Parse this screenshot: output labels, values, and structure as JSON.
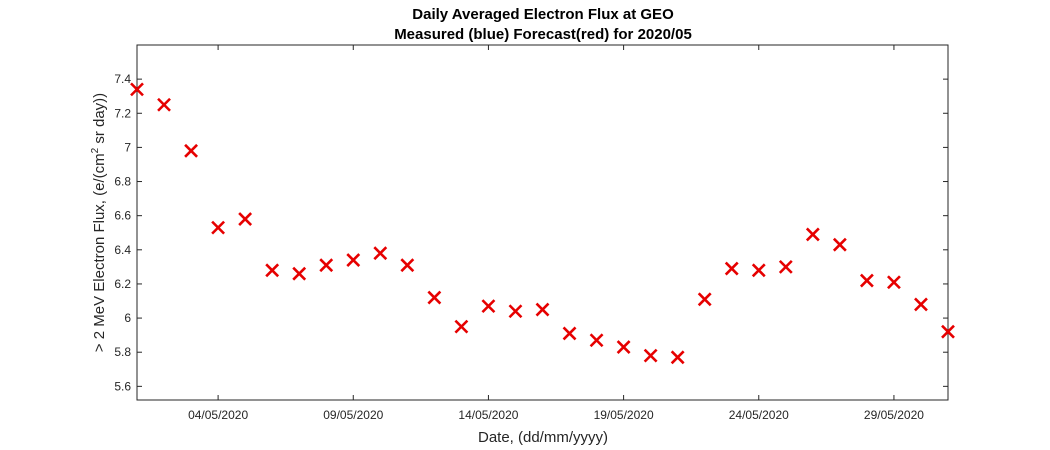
{
  "chart_data": {
    "type": "scatter",
    "title": "Daily Averaged Electron Flux at GEO",
    "subtitle": "Measured (blue) Forecast(red) for 2020/05",
    "xlabel": "Date, (dd/mm/yyyy)",
    "ylabel": {
      "prefix": "> 2 MeV Electron Flux, (e/(cm",
      "superscript": "2",
      "suffix": " sr day))"
    },
    "xlim": [
      "2020-05-01",
      "2020-05-31"
    ],
    "ylim": [
      5.52,
      7.6
    ],
    "x_ticks": [
      {
        "date": "2020-05-04",
        "label": "04/05/2020"
      },
      {
        "date": "2020-05-09",
        "label": "09/05/2020"
      },
      {
        "date": "2020-05-14",
        "label": "14/05/2020"
      },
      {
        "date": "2020-05-19",
        "label": "19/05/2020"
      },
      {
        "date": "2020-05-24",
        "label": "24/05/2020"
      },
      {
        "date": "2020-05-29",
        "label": "29/05/2020"
      }
    ],
    "y_ticks": [
      {
        "value": 5.6,
        "label": "5.6"
      },
      {
        "value": 5.8,
        "label": "5.8"
      },
      {
        "value": 6.0,
        "label": "6"
      },
      {
        "value": 6.2,
        "label": "6.2"
      },
      {
        "value": 6.4,
        "label": "6.4"
      },
      {
        "value": 6.6,
        "label": "6.6"
      },
      {
        "value": 6.8,
        "label": "6.8"
      },
      {
        "value": 7.0,
        "label": "7"
      },
      {
        "value": 7.2,
        "label": "7.2"
      },
      {
        "value": 7.4,
        "label": "7.4"
      }
    ],
    "grid": false,
    "series": [
      {
        "color": "#e60000",
        "marker": "x",
        "points": [
          {
            "x": "2020-05-01",
            "y": 7.34
          },
          {
            "x": "2020-05-02",
            "y": 7.25
          },
          {
            "x": "2020-05-03",
            "y": 6.98
          },
          {
            "x": "2020-05-04",
            "y": 6.53
          },
          {
            "x": "2020-05-05",
            "y": 6.58
          },
          {
            "x": "2020-05-06",
            "y": 6.28
          },
          {
            "x": "2020-05-07",
            "y": 6.26
          },
          {
            "x": "2020-05-08",
            "y": 6.31
          },
          {
            "x": "2020-05-09",
            "y": 6.34
          },
          {
            "x": "2020-05-10",
            "y": 6.38
          },
          {
            "x": "2020-05-11",
            "y": 6.31
          },
          {
            "x": "2020-05-12",
            "y": 6.12
          },
          {
            "x": "2020-05-13",
            "y": 5.95
          },
          {
            "x": "2020-05-14",
            "y": 6.07
          },
          {
            "x": "2020-05-15",
            "y": 6.04
          },
          {
            "x": "2020-05-16",
            "y": 6.05
          },
          {
            "x": "2020-05-17",
            "y": 5.91
          },
          {
            "x": "2020-05-18",
            "y": 5.87
          },
          {
            "x": "2020-05-19",
            "y": 5.83
          },
          {
            "x": "2020-05-20",
            "y": 5.78
          },
          {
            "x": "2020-05-21",
            "y": 5.77
          },
          {
            "x": "2020-05-22",
            "y": 6.11
          },
          {
            "x": "2020-05-23",
            "y": 6.29
          },
          {
            "x": "2020-05-24",
            "y": 6.28
          },
          {
            "x": "2020-05-25",
            "y": 6.3
          },
          {
            "x": "2020-05-26",
            "y": 6.49
          },
          {
            "x": "2020-05-27",
            "y": 6.43
          },
          {
            "x": "2020-05-28",
            "y": 6.22
          },
          {
            "x": "2020-05-29",
            "y": 6.21
          },
          {
            "x": "2020-05-30",
            "y": 6.08
          },
          {
            "x": "2020-05-31",
            "y": 5.92
          }
        ]
      }
    ]
  }
}
